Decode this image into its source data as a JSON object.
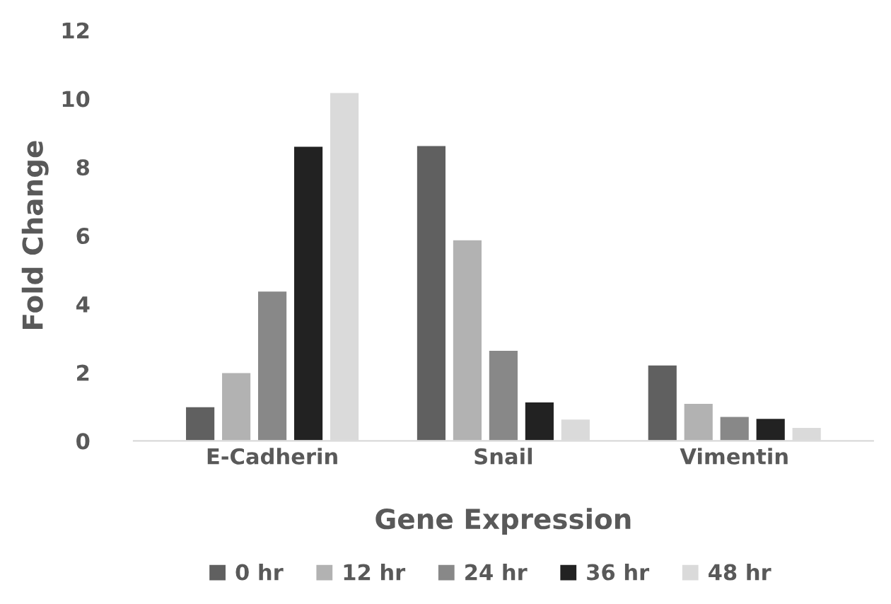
{
  "chart_data": {
    "type": "bar",
    "xlabel": "Gene Expression",
    "ylabel": "Fold Change",
    "categories": [
      "E-Cadherin",
      "Snail",
      "Vimentin"
    ],
    "series": [
      {
        "name": "0 hr",
        "color": "#606060",
        "values": [
          1.0,
          8.63,
          2.22
        ]
      },
      {
        "name": "12 hr",
        "color": "#b2b2b2",
        "values": [
          2.0,
          5.88,
          1.1
        ]
      },
      {
        "name": "24 hr",
        "color": "#888888",
        "values": [
          4.38,
          2.65,
          0.72
        ]
      },
      {
        "name": "36 hr",
        "color": "#222222",
        "values": [
          8.61,
          1.14,
          0.66
        ]
      },
      {
        "name": "48 hr",
        "color": "#dadada",
        "values": [
          10.18,
          0.64,
          0.4
        ]
      }
    ],
    "ylim": [
      0,
      12
    ],
    "yticks": [
      0,
      2,
      4,
      6,
      8,
      10,
      12
    ],
    "grid": false,
    "legend": "bottom"
  }
}
